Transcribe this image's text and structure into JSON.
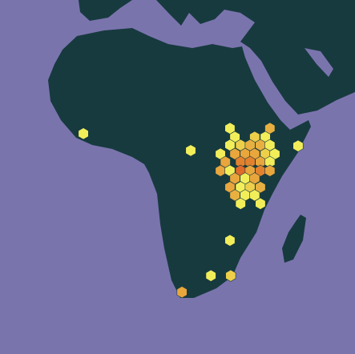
{
  "map": {
    "hexbins": [
      {
        "lon": -8.2,
        "lat": 8.4,
        "color": "#f2ee5a"
      },
      {
        "lon": 20.0,
        "lat": 4.0,
        "color": "#f2ee5a"
      },
      {
        "lon": 48.2,
        "lat": 5.2,
        "color": "#f2ee5a"
      },
      {
        "lon": 30.3,
        "lat": -19.5,
        "color": "#f2ee5a"
      },
      {
        "lon": 25.3,
        "lat": -28.7,
        "color": "#f2ee5a"
      },
      {
        "lon": 30.5,
        "lat": -28.7,
        "color": "#edcf4a"
      },
      {
        "lon": 17.7,
        "lat": -33.0,
        "color": "#e8a63c"
      },
      {
        "lon": 30.3,
        "lat": 9.8,
        "color": "#f2ee5a"
      },
      {
        "lon": 40.8,
        "lat": 9.8,
        "color": "#e8b040"
      },
      {
        "lon": 31.6,
        "lat": 7.5,
        "color": "#f2ee5a"
      },
      {
        "lon": 36.8,
        "lat": 7.5,
        "color": "#edcf4a"
      },
      {
        "lon": 39.6,
        "lat": 7.5,
        "color": "#f2ee5a"
      },
      {
        "lon": 30.3,
        "lat": 5.4,
        "color": "#f2ee5a"
      },
      {
        "lon": 33.1,
        "lat": 5.4,
        "color": "#edcf4a"
      },
      {
        "lon": 35.6,
        "lat": 5.4,
        "color": "#e8b040"
      },
      {
        "lon": 38.3,
        "lat": 5.4,
        "color": "#e8b040"
      },
      {
        "lon": 40.8,
        "lat": 5.4,
        "color": "#f2ee5a"
      },
      {
        "lon": 27.8,
        "lat": 3.1,
        "color": "#f2ee5a"
      },
      {
        "lon": 31.6,
        "lat": 3.1,
        "color": "#e8a63c"
      },
      {
        "lon": 34.3,
        "lat": 3.1,
        "color": "#e8a63c"
      },
      {
        "lon": 36.8,
        "lat": 3.1,
        "color": "#e8a63c"
      },
      {
        "lon": 39.6,
        "lat": 3.1,
        "color": "#edcf4a"
      },
      {
        "lon": 42.1,
        "lat": 3.1,
        "color": "#f2ee5a"
      },
      {
        "lon": 29.1,
        "lat": 1.0,
        "color": "#e8a63c"
      },
      {
        "lon": 33.1,
        "lat": 1.0,
        "color": "#e2822e"
      },
      {
        "lon": 35.6,
        "lat": 1.0,
        "color": "#e2822e"
      },
      {
        "lon": 38.3,
        "lat": 1.0,
        "color": "#e8a63c"
      },
      {
        "lon": 40.8,
        "lat": 1.0,
        "color": "#f2ee5a"
      },
      {
        "lon": 27.8,
        "lat": -1.3,
        "color": "#e8a63c"
      },
      {
        "lon": 30.3,
        "lat": -1.3,
        "color": "#f2ee5a"
      },
      {
        "lon": 33.1,
        "lat": -1.3,
        "color": "#e06a2a"
      },
      {
        "lon": 35.6,
        "lat": -1.3,
        "color": "#e8a63c"
      },
      {
        "lon": 38.3,
        "lat": -1.3,
        "color": "#e2822e"
      },
      {
        "lon": 40.8,
        "lat": -1.3,
        "color": "#e8a63c"
      },
      {
        "lon": 31.6,
        "lat": -3.3,
        "color": "#e8a63c"
      },
      {
        "lon": 34.3,
        "lat": -3.3,
        "color": "#f2ee5a"
      },
      {
        "lon": 36.8,
        "lat": -3.3,
        "color": "#e8a63c"
      },
      {
        "lon": 30.3,
        "lat": -5.6,
        "color": "#e8a63c"
      },
      {
        "lon": 33.1,
        "lat": -5.6,
        "color": "#f2ee5a"
      },
      {
        "lon": 35.6,
        "lat": -5.6,
        "color": "#edcf4a"
      },
      {
        "lon": 38.3,
        "lat": -5.6,
        "color": "#e8b040"
      },
      {
        "lon": 31.6,
        "lat": -7.7,
        "color": "#e8b040"
      },
      {
        "lon": 34.3,
        "lat": -7.7,
        "color": "#f2ee5a"
      },
      {
        "lon": 36.8,
        "lat": -7.7,
        "color": "#f2ee5a"
      },
      {
        "lon": 33.1,
        "lat": -9.9,
        "color": "#f2ee5a"
      },
      {
        "lon": 38.3,
        "lat": -9.9,
        "color": "#f2ee5a"
      }
    ]
  }
}
